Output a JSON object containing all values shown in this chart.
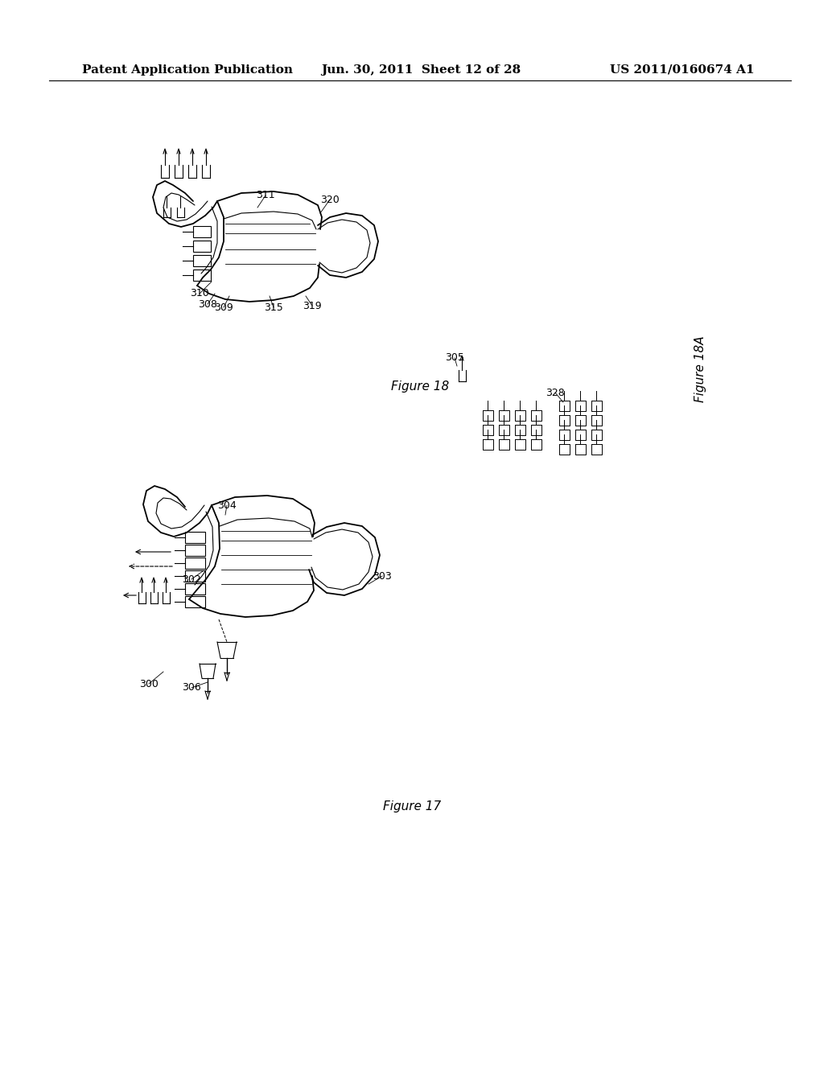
{
  "bg_color": "#ffffff",
  "header_text1": "Patent Application Publication",
  "header_text2": "Jun. 30, 2011  Sheet 12 of 28",
  "header_text3": "US 2011/0160674 A1",
  "fig17_label": "Figure 17",
  "fig18_label": "Figure 18",
  "fig18a_label": "Figure 18A",
  "line_color": "#000000",
  "text_color": "#000000",
  "font_size_header": 11,
  "font_size_label": 9,
  "font_size_figure": 11
}
